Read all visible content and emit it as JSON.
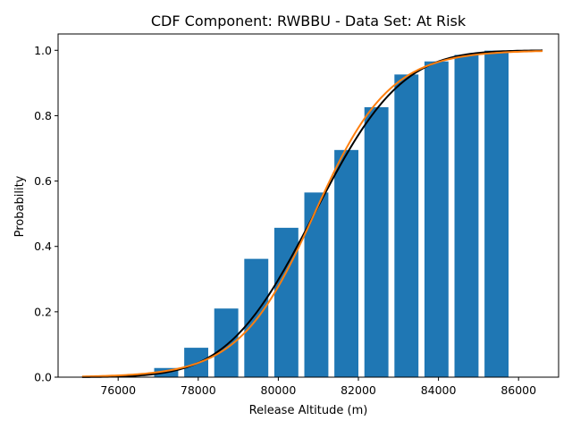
{
  "chart_data": {
    "type": "bar",
    "title": "CDF Component: RWBBU - Data Set: At Risk",
    "xlabel": "Release Altitude (m)",
    "ylabel": "Probability",
    "xlim": [
      74500,
      87000
    ],
    "ylim": [
      0.0,
      1.05
    ],
    "xticks": [
      76000,
      78000,
      80000,
      82000,
      84000,
      86000
    ],
    "xtick_labels": [
      "76000",
      "78000",
      "80000",
      "82000",
      "84000",
      "86000"
    ],
    "yticks": [
      0.0,
      0.2,
      0.4,
      0.6,
      0.8,
      1.0
    ],
    "ytick_labels": [
      "0.0",
      "0.2",
      "0.4",
      "0.6",
      "0.8",
      "1.0"
    ],
    "grid": false,
    "legend": "none",
    "bar_width": 600,
    "bars": [
      {
        "x": 77200,
        "value": 0.028
      },
      {
        "x": 77950,
        "value": 0.09
      },
      {
        "x": 78700,
        "value": 0.21
      },
      {
        "x": 79450,
        "value": 0.362
      },
      {
        "x": 80200,
        "value": 0.457
      },
      {
        "x": 80950,
        "value": 0.565
      },
      {
        "x": 81700,
        "value": 0.695
      },
      {
        "x": 82450,
        "value": 0.826
      },
      {
        "x": 83200,
        "value": 0.926
      },
      {
        "x": 83950,
        "value": 0.966
      },
      {
        "x": 84700,
        "value": 0.986
      },
      {
        "x": 85450,
        "value": 0.999
      }
    ],
    "curves": [
      {
        "kind": "normal-cdf",
        "mean": 80900,
        "sd": 1700,
        "x_range": [
          75100,
          86600
        ]
      },
      {
        "kind": "logistic-cdf",
        "mean": 80900,
        "scale": 940,
        "x_range": [
          75100,
          86600
        ]
      }
    ],
    "colors": {
      "bars": "#1f77b4",
      "curve_1": "#000000",
      "curve_2": "#ff7f0e"
    }
  }
}
